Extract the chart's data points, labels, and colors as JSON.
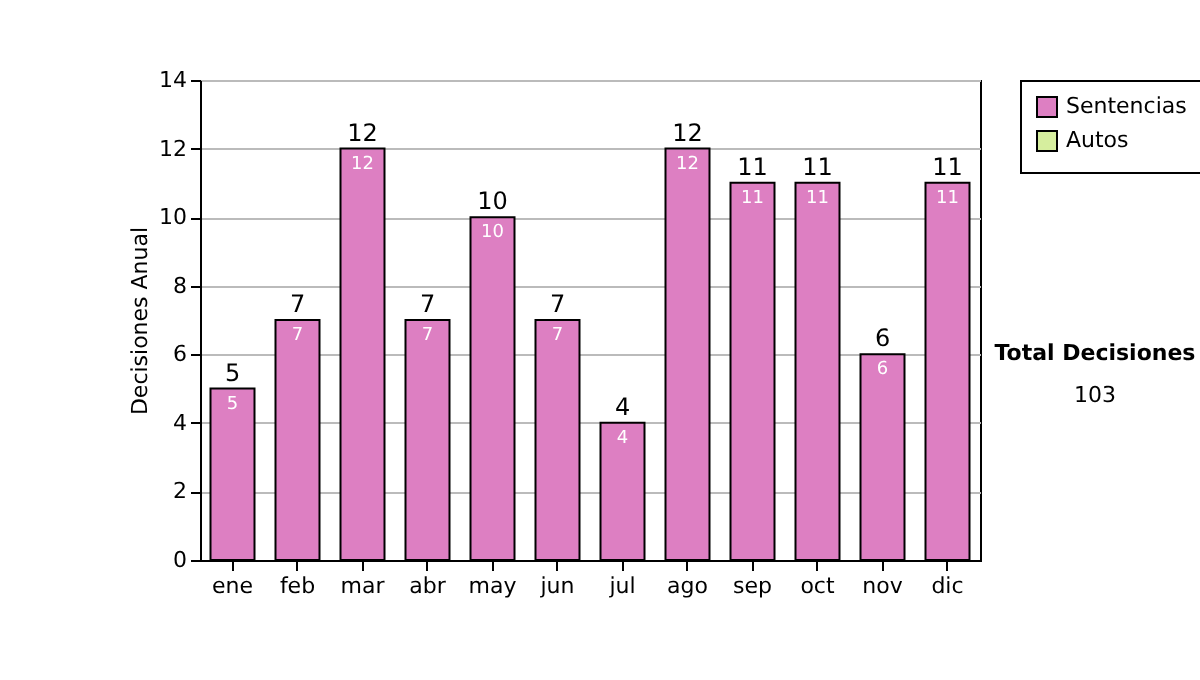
{
  "chart_data": {
    "type": "bar",
    "ylabel": "Decisiones Anual",
    "categories": [
      "ene",
      "feb",
      "mar",
      "abr",
      "may",
      "jun",
      "jul",
      "ago",
      "sep",
      "oct",
      "nov",
      "dic"
    ],
    "series": [
      {
        "name": "Sentencias",
        "color": "#dd7fc2",
        "values": [
          5,
          7,
          12,
          7,
          10,
          7,
          4,
          12,
          11,
          11,
          6,
          11
        ],
        "value_labels": [
          "5",
          "7",
          "12",
          "7",
          "10",
          "7",
          "4",
          "12",
          "11",
          "11",
          "6",
          "11"
        ]
      },
      {
        "name": "Autos",
        "color": "#d6ee9e",
        "values": [
          0,
          0,
          0,
          0,
          0,
          0,
          0,
          0,
          0,
          0,
          0,
          0
        ]
      }
    ],
    "stacked": true,
    "totals": [
      "5",
      "7",
      "12",
      "7",
      "10",
      "7",
      "4",
      "12",
      "11",
      "11",
      "6",
      "11"
    ],
    "ylim": [
      0,
      14
    ],
    "yticks": [
      0,
      2,
      4,
      6,
      8,
      10,
      12,
      14
    ],
    "grid": "y",
    "legend": "right",
    "annotations": [
      "Total Decisiones",
      "103"
    ]
  }
}
